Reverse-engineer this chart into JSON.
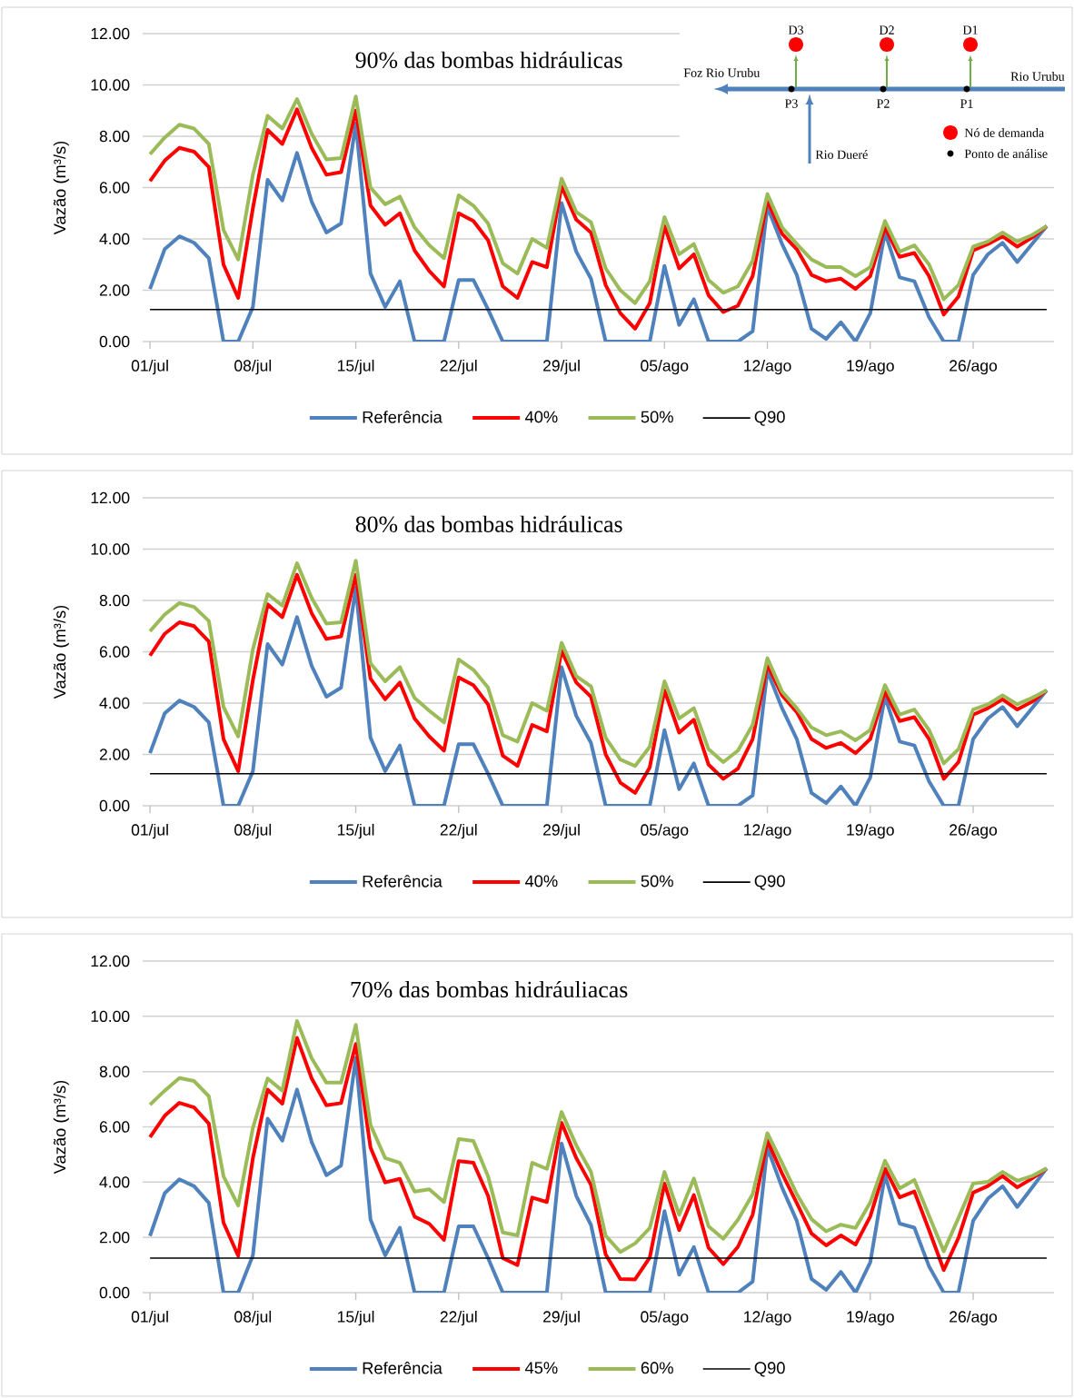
{
  "chart_data": [
    {
      "type": "line",
      "title": "90% das bombas hidráulicas",
      "ylabel": "Vazão (m³/s)",
      "categories": [
        "01/jul",
        null,
        null,
        null,
        null,
        null,
        null,
        "08/jul",
        null,
        null,
        null,
        null,
        null,
        null,
        "15/jul",
        null,
        null,
        null,
        null,
        null,
        null,
        "22/jul",
        null,
        null,
        null,
        null,
        null,
        null,
        "29/jul",
        null,
        null,
        null,
        null,
        null,
        null,
        "05/ago",
        null,
        null,
        null,
        null,
        null,
        null,
        "12/ago",
        null,
        null,
        null,
        null,
        null,
        null,
        "19/ago",
        null,
        null,
        null,
        null,
        null,
        null,
        "26/ago",
        null,
        null,
        null,
        null,
        null
      ],
      "series": [
        {
          "name": "Referência",
          "color": "#4f81bd",
          "values": [
            2.05,
            3.6,
            4.1,
            3.85,
            3.25,
            0,
            0,
            1.35,
            6.3,
            5.5,
            7.35,
            5.45,
            4.25,
            4.6,
            8.5,
            2.65,
            1.35,
            2.35,
            0,
            0,
            0,
            2.4,
            2.4,
            1.25,
            0,
            0,
            0,
            0,
            5.4,
            3.5,
            2.45,
            0,
            0,
            0,
            0,
            2.95,
            0.65,
            1.65,
            0,
            0,
            0,
            0.4,
            5.25,
            3.8,
            2.6,
            0.5,
            0.1,
            0.75,
            0,
            1.1,
            4.25,
            2.5,
            2.35,
            0.95,
            0,
            0,
            2.6,
            3.4,
            3.85,
            3.1,
            3.8,
            4.5
          ]
        },
        {
          "name": "40%",
          "color": "#ff0000",
          "values": [
            6.25,
            7.05,
            7.55,
            7.4,
            6.8,
            3.0,
            1.7,
            5.2,
            8.25,
            7.7,
            9.05,
            7.55,
            6.5,
            6.6,
            9.0,
            5.3,
            4.55,
            5.0,
            3.55,
            2.75,
            2.15,
            5.0,
            4.7,
            3.95,
            2.15,
            1.7,
            3.1,
            2.9,
            6.05,
            4.75,
            4.25,
            2.2,
            1.1,
            0.5,
            1.5,
            4.5,
            2.85,
            3.4,
            1.8,
            1.15,
            1.4,
            2.55,
            5.5,
            4.2,
            3.6,
            2.6,
            2.35,
            2.45,
            2.05,
            2.55,
            4.45,
            3.3,
            3.45,
            2.55,
            1.05,
            1.75,
            3.55,
            3.8,
            4.1,
            3.7,
            4.05,
            4.5
          ]
        },
        {
          "name": "50%",
          "color": "#9bbb59",
          "values": [
            7.3,
            7.95,
            8.45,
            8.3,
            7.7,
            4.35,
            3.2,
            6.5,
            8.8,
            8.3,
            9.45,
            8.1,
            7.1,
            7.15,
            9.55,
            6.0,
            5.35,
            5.65,
            4.45,
            3.75,
            3.25,
            5.7,
            5.3,
            4.6,
            3.05,
            2.65,
            4.0,
            3.65,
            6.35,
            5.05,
            4.65,
            2.85,
            2.0,
            1.5,
            2.35,
            4.85,
            3.4,
            3.8,
            2.4,
            1.9,
            2.15,
            3.15,
            5.75,
            4.45,
            3.8,
            3.2,
            2.9,
            2.9,
            2.55,
            2.9,
            4.7,
            3.5,
            3.75,
            3.0,
            1.65,
            2.2,
            3.7,
            3.9,
            4.25,
            3.9,
            4.15,
            4.5
          ]
        }
      ],
      "ref_lines": [
        {
          "axis": "y",
          "value": 1.25,
          "label": "Q90",
          "color": "#000000"
        }
      ],
      "ylim": [
        0,
        12
      ],
      "yticks": [
        {
          "value": 0,
          "label": "0.00"
        },
        {
          "value": 2,
          "label": "2.00"
        },
        {
          "value": 4,
          "label": "4.00"
        },
        {
          "value": 6,
          "label": "6.00"
        },
        {
          "value": 8,
          "label": "8.00"
        },
        {
          "value": 10,
          "label": "10.00"
        },
        {
          "value": 12,
          "label": "12.00"
        }
      ],
      "grid": "y",
      "legend": "bottom",
      "marker": "none",
      "line_style": "solid",
      "annotations": [
        "D3",
        "D2",
        "D1",
        "Foz Rio Urubu",
        "Rio Urubu",
        "P3",
        "P2",
        "P1",
        "Rio Dueré",
        "Nó de demanda",
        "Ponto de análise"
      ]
    },
    {
      "type": "line",
      "title": "80% das bombas hidráulicas",
      "ylabel": "Vazão (m³/s)",
      "categories": [
        "01/jul",
        null,
        null,
        null,
        null,
        null,
        null,
        "08/jul",
        null,
        null,
        null,
        null,
        null,
        null,
        "15/jul",
        null,
        null,
        null,
        null,
        null,
        null,
        "22/jul",
        null,
        null,
        null,
        null,
        null,
        null,
        "29/jul",
        null,
        null,
        null,
        null,
        null,
        null,
        "05/ago",
        null,
        null,
        null,
        null,
        null,
        null,
        "12/ago",
        null,
        null,
        null,
        null,
        null,
        null,
        "19/ago",
        null,
        null,
        null,
        null,
        null,
        null,
        "26/ago",
        null,
        null,
        null,
        null,
        null
      ],
      "series": [
        {
          "name": "Referência",
          "color": "#4f81bd",
          "values": [
            2.05,
            3.6,
            4.1,
            3.85,
            3.25,
            0,
            0,
            1.35,
            6.3,
            5.5,
            7.35,
            5.45,
            4.25,
            4.6,
            8.5,
            2.65,
            1.35,
            2.35,
            0,
            0,
            0,
            2.4,
            2.4,
            1.25,
            0,
            0,
            0,
            0,
            5.4,
            3.5,
            2.45,
            0,
            0,
            0,
            0,
            2.95,
            0.65,
            1.65,
            0,
            0,
            0,
            0.4,
            5.25,
            3.8,
            2.6,
            0.5,
            0.1,
            0.75,
            0,
            1.1,
            4.25,
            2.5,
            2.35,
            0.95,
            0,
            0,
            2.6,
            3.4,
            3.85,
            3.1,
            3.8,
            4.5
          ]
        },
        {
          "name": "40%",
          "color": "#ff0000",
          "values": [
            5.85,
            6.7,
            7.15,
            7.0,
            6.4,
            2.6,
            1.35,
            4.9,
            7.85,
            7.35,
            9.0,
            7.5,
            6.5,
            6.6,
            9.0,
            4.95,
            4.15,
            4.8,
            3.4,
            2.7,
            2.15,
            5.0,
            4.7,
            3.95,
            1.95,
            1.55,
            3.15,
            2.9,
            6.05,
            4.8,
            4.25,
            2.0,
            0.9,
            0.5,
            1.5,
            4.5,
            2.85,
            3.35,
            1.6,
            1.05,
            1.45,
            2.6,
            5.5,
            4.3,
            3.65,
            2.6,
            2.25,
            2.45,
            2.05,
            2.6,
            4.45,
            3.3,
            3.45,
            2.6,
            1.05,
            1.7,
            3.55,
            3.8,
            4.15,
            3.75,
            4.05,
            4.5
          ]
        },
        {
          "name": "50%",
          "color": "#9bbb59",
          "values": [
            6.8,
            7.45,
            7.9,
            7.75,
            7.2,
            3.85,
            2.7,
            6.1,
            8.25,
            7.8,
            9.45,
            8.1,
            7.1,
            7.15,
            9.55,
            5.55,
            4.85,
            5.4,
            4.2,
            3.7,
            3.25,
            5.7,
            5.3,
            4.6,
            2.75,
            2.5,
            4.0,
            3.7,
            6.35,
            5.05,
            4.65,
            2.65,
            1.8,
            1.55,
            2.3,
            4.85,
            3.4,
            3.8,
            2.2,
            1.7,
            2.15,
            3.15,
            5.75,
            4.45,
            3.8,
            3.05,
            2.75,
            2.9,
            2.55,
            2.95,
            4.7,
            3.55,
            3.75,
            2.95,
            1.65,
            2.2,
            3.75,
            3.95,
            4.3,
            3.95,
            4.2,
            4.5
          ]
        }
      ],
      "ref_lines": [
        {
          "axis": "y",
          "value": 1.25,
          "label": "Q90",
          "color": "#000000"
        }
      ],
      "ylim": [
        0,
        12
      ],
      "yticks": [
        {
          "value": 0,
          "label": "0.00"
        },
        {
          "value": 2,
          "label": "2.00"
        },
        {
          "value": 4,
          "label": "4.00"
        },
        {
          "value": 6,
          "label": "6.00"
        },
        {
          "value": 8,
          "label": "8.00"
        },
        {
          "value": 10,
          "label": "10.00"
        },
        {
          "value": 12,
          "label": "12.00"
        }
      ],
      "grid": "y",
      "legend": "bottom",
      "marker": "none",
      "line_style": "solid"
    },
    {
      "type": "line",
      "title": "70% das bombas hidráuliacas",
      "ylabel": "Vazão (m³/s)",
      "categories": [
        "01/jul",
        null,
        null,
        null,
        null,
        null,
        null,
        "08/jul",
        null,
        null,
        null,
        null,
        null,
        null,
        "15/jul",
        null,
        null,
        null,
        null,
        null,
        null,
        "22/jul",
        null,
        null,
        null,
        null,
        null,
        null,
        "29/jul",
        null,
        null,
        null,
        null,
        null,
        null,
        "05/ago",
        null,
        null,
        null,
        null,
        null,
        null,
        "12/ago",
        null,
        null,
        null,
        null,
        null,
        null,
        "19/ago",
        null,
        null,
        null,
        null,
        null,
        null,
        "26/ago",
        null,
        null,
        null,
        null,
        null
      ],
      "series": [
        {
          "name": "Referência",
          "color": "#4f81bd",
          "values": [
            2.05,
            3.6,
            4.1,
            3.85,
            3.25,
            0,
            0,
            1.35,
            6.3,
            5.5,
            7.35,
            5.45,
            4.25,
            4.6,
            8.5,
            2.65,
            1.35,
            2.35,
            0,
            0,
            0,
            2.4,
            2.4,
            1.25,
            0,
            0,
            0,
            0,
            5.4,
            3.5,
            2.45,
            0,
            0,
            0,
            0,
            2.95,
            0.65,
            1.65,
            0,
            0,
            0,
            0.4,
            5.25,
            3.8,
            2.6,
            0.5,
            0.1,
            0.75,
            0,
            1.1,
            4.25,
            2.5,
            2.35,
            0.95,
            0,
            0,
            2.6,
            3.4,
            3.85,
            3.1,
            3.8,
            4.5
          ]
        },
        {
          "name": "45%",
          "color": "#ff0000",
          "values": [
            5.63,
            6.4,
            6.87,
            6.7,
            6.12,
            2.53,
            1.33,
            4.87,
            7.35,
            6.84,
            9.22,
            7.75,
            6.78,
            6.86,
            9.0,
            5.25,
            3.99,
            4.12,
            2.75,
            2.49,
            1.91,
            4.76,
            4.7,
            3.5,
            1.25,
            1.0,
            3.44,
            3.28,
            6.15,
            4.87,
            3.9,
            1.38,
            0.49,
            0.48,
            1.27,
            3.95,
            2.26,
            3.53,
            1.62,
            1.03,
            1.66,
            2.82,
            5.51,
            4.31,
            3.24,
            2.14,
            1.71,
            2.07,
            1.74,
            2.76,
            4.49,
            3.45,
            3.66,
            2.26,
            0.82,
            1.98,
            3.62,
            3.86,
            4.22,
            3.81,
            4.13,
            4.49
          ]
        },
        {
          "name": "60%",
          "color": "#9bbb59",
          "values": [
            6.8,
            7.31,
            7.77,
            7.66,
            7.11,
            4.21,
            3.15,
            5.96,
            7.75,
            7.31,
            9.83,
            8.48,
            7.6,
            7.6,
            9.69,
            6.07,
            4.87,
            4.7,
            3.66,
            3.74,
            3.28,
            5.56,
            5.49,
            4.21,
            2.18,
            2.07,
            4.7,
            4.48,
            6.54,
            5.33,
            4.37,
            2.06,
            1.47,
            1.78,
            2.34,
            4.37,
            2.82,
            4.13,
            2.4,
            1.95,
            2.64,
            3.57,
            5.77,
            4.69,
            3.57,
            2.66,
            2.22,
            2.46,
            2.34,
            3.26,
            4.77,
            3.77,
            4.08,
            2.78,
            1.5,
            2.7,
            3.95,
            4.01,
            4.37,
            4.05,
            4.22,
            4.5
          ]
        }
      ],
      "ref_lines": [
        {
          "axis": "y",
          "value": 1.25,
          "label": "Q90",
          "color": "#000000"
        }
      ],
      "ylim": [
        0,
        12
      ],
      "yticks": [
        {
          "value": 0,
          "label": "0.00"
        },
        {
          "value": 2,
          "label": "2.00"
        },
        {
          "value": 4,
          "label": "4.00"
        },
        {
          "value": 6,
          "label": "6.00"
        },
        {
          "value": 8,
          "label": "8.00"
        },
        {
          "value": 10,
          "label": "10.00"
        },
        {
          "value": 12,
          "label": "12.00"
        }
      ],
      "grid": "y",
      "legend": "bottom",
      "marker": "none",
      "line_style": "solid"
    }
  ]
}
